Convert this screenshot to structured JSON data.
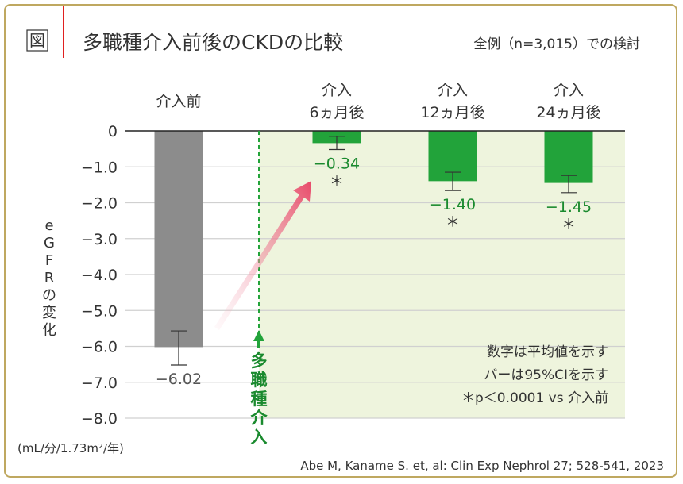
{
  "header": {
    "fig_label": "図",
    "title": "多職種介入前後のCKDの比較",
    "subtitle": "全例（n=3,015）での検討"
  },
  "chart_data": {
    "type": "bar",
    "title": "多職種介入前後のCKDの比較",
    "ylabel": "eGFRの変化",
    "yunit": "(mL/分/1.73m²/年)",
    "ylim": [
      -8.0,
      0
    ],
    "yticks": [
      "0",
      "−1.0",
      "−2.0",
      "−3.0",
      "−4.0",
      "−5.0",
      "−6.0",
      "−7.0",
      "−8.0"
    ],
    "ytick_values": [
      0,
      -1,
      -2,
      -3,
      -4,
      -5,
      -6,
      -7,
      -8
    ],
    "grid": true,
    "categories": [
      [
        "介入前"
      ],
      [
        "介入",
        "6ヵ月後"
      ],
      [
        "介入",
        "12ヵ月後"
      ],
      [
        "介入",
        "24ヵ月後"
      ]
    ],
    "values": [
      -6.02,
      -0.34,
      -1.4,
      -1.45
    ],
    "value_labels": [
      "−6.02",
      "−0.34",
      "−1.40",
      "−1.45"
    ],
    "ci": [
      [
        -5.57,
        -6.52
      ],
      [
        -0.15,
        -0.52
      ],
      [
        -1.15,
        -1.66
      ],
      [
        -1.24,
        -1.72
      ]
    ],
    "significance": [
      "",
      "＊",
      "＊",
      "＊"
    ],
    "colors": {
      "before": "#8c8c8c",
      "after": "#22a33a",
      "shade": "#eef4dd",
      "label_green": "#1a8a2e"
    },
    "intervention_label": "多職種介入",
    "notes": [
      "数字は平均値を示す",
      "バーは95%CIを示す",
      "＊p＜0.0001 vs 介入前"
    ]
  },
  "citation": "Abe M, Kaname S. et, al: Clin Exp Nephrol 27; 528-541, 2023"
}
